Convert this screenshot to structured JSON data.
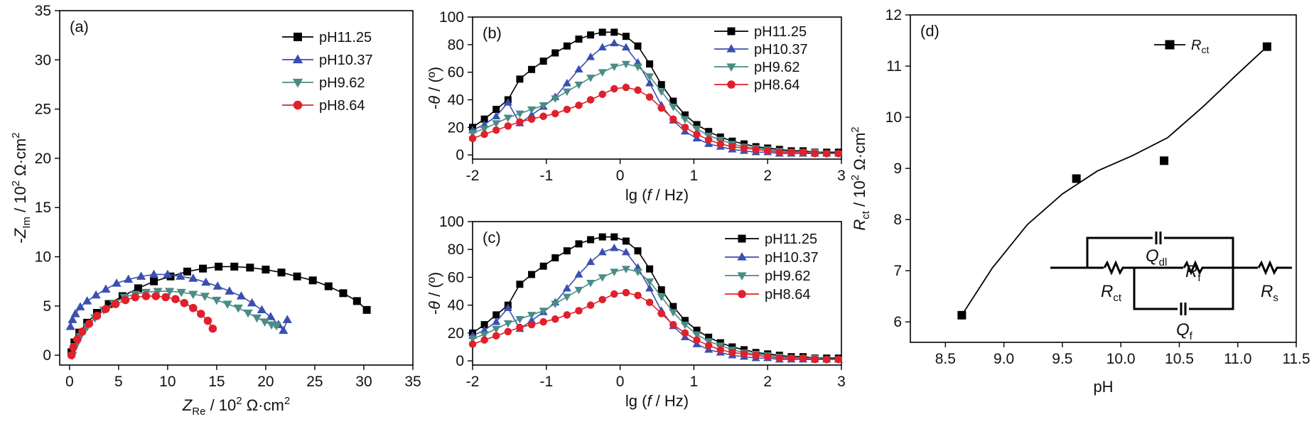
{
  "chart_data": [
    {
      "panel_label": "(a)",
      "type": "scatter",
      "xlim": [
        -1,
        35
      ],
      "ylim": [
        -1,
        35
      ],
      "x_ticks": [
        0,
        5,
        10,
        15,
        20,
        25,
        30,
        35
      ],
      "y_ticks": [
        0,
        5,
        10,
        15,
        20,
        25,
        30,
        35
      ],
      "xlabel": {
        "main": "Z",
        "sub": "Re",
        "rest": " / 10",
        "sup": "2",
        "unit": " Ω·cm",
        "sup2": "2"
      },
      "ylabel": {
        "main": "-Z",
        "sub": "Im",
        "rest": " / 10",
        "sup": "2",
        "unit": " Ω·cm",
        "sup2": "2"
      },
      "legend_position": "top-right",
      "series": [
        {
          "name": "pH11.25",
          "color": "#000000",
          "marker": "square",
          "x": [
            0.2,
            0.5,
            1.0,
            1.8,
            2.8,
            4.0,
            5.4,
            7.0,
            8.6,
            10.3,
            12.0,
            13.6,
            15.2,
            16.8,
            18.4,
            20.0,
            21.6,
            23.2,
            24.8,
            26.4,
            27.9,
            29.3,
            30.3
          ],
          "y": [
            0.3,
            1.3,
            2.3,
            3.3,
            4.3,
            5.2,
            6.0,
            6.8,
            7.5,
            8.0,
            8.5,
            8.8,
            9.0,
            9.0,
            8.9,
            8.7,
            8.4,
            8.0,
            7.6,
            7.0,
            6.3,
            5.5,
            4.6
          ]
        },
        {
          "name": "pH10.37",
          "color": "#3a4fb0",
          "marker": "triangle-up",
          "x": [
            0.1,
            0.3,
            0.6,
            1.1,
            1.8,
            2.7,
            3.7,
            4.8,
            6.0,
            7.3,
            8.6,
            10.0,
            11.3,
            12.6,
            13.9,
            15.1,
            16.3,
            17.5,
            18.6,
            19.6,
            20.5,
            21.3,
            21.8,
            22.2
          ],
          "y": [
            2.9,
            3.6,
            4.2,
            4.9,
            5.5,
            6.1,
            6.7,
            7.3,
            7.7,
            8.0,
            8.2,
            8.2,
            8.0,
            7.8,
            7.4,
            7.0,
            6.5,
            6.0,
            5.3,
            4.6,
            3.9,
            3.1,
            2.5,
            3.6
          ]
        },
        {
          "name": "pH9.62",
          "color": "#4a8c86",
          "marker": "triangle-down",
          "x": [
            0.3,
            0.6,
            1.1,
            1.8,
            2.6,
            3.5,
            4.5,
            5.6,
            6.7,
            7.8,
            9.0,
            10.2,
            11.4,
            12.6,
            13.8,
            15.0,
            16.1,
            17.2,
            18.2,
            19.1,
            19.9,
            20.6,
            21.1
          ],
          "y": [
            0.0,
            0.9,
            1.9,
            2.9,
            3.8,
            4.6,
            5.3,
            5.9,
            6.2,
            6.4,
            6.5,
            6.5,
            6.4,
            6.2,
            6.0,
            5.6,
            5.2,
            4.8,
            4.3,
            3.8,
            3.4,
            3.1,
            3.0
          ]
        },
        {
          "name": "pH8.64",
          "color": "#e0202a",
          "marker": "circle",
          "x": [
            0.2,
            0.4,
            0.8,
            1.3,
            2.0,
            2.8,
            3.7,
            4.7,
            5.7,
            6.7,
            7.8,
            8.8,
            9.8,
            10.8,
            11.7,
            12.6,
            13.4,
            14.1,
            14.6
          ],
          "y": [
            0.0,
            0.8,
            1.6,
            2.4,
            3.2,
            4.0,
            4.7,
            5.2,
            5.6,
            5.9,
            6.0,
            6.0,
            5.9,
            5.7,
            5.3,
            4.8,
            4.2,
            3.5,
            2.7
          ]
        }
      ]
    },
    {
      "panel_label": "(b)",
      "type": "line",
      "xlim": [
        -2,
        3
      ],
      "ylim": [
        -3,
        100
      ],
      "x_ticks": [
        -2,
        -1,
        0,
        1,
        2,
        3
      ],
      "y_ticks": [
        0,
        20,
        40,
        60,
        80,
        100
      ],
      "xlabel": {
        "pre": "lg (",
        "ital": "f",
        "post": " / Hz)"
      },
      "ylabel": {
        "pre": "-",
        "ital": "θ",
        "post": " / (º)"
      },
      "legend_position": "top-right",
      "x": [
        -2.0,
        -1.84,
        -1.68,
        -1.52,
        -1.36,
        -1.2,
        -1.04,
        -0.88,
        -0.72,
        -0.56,
        -0.4,
        -0.24,
        -0.08,
        0.08,
        0.24,
        0.4,
        0.56,
        0.72,
        0.88,
        1.04,
        1.2,
        1.36,
        1.52,
        1.68,
        1.84,
        2.0,
        2.16,
        2.32,
        2.48,
        2.64,
        2.8,
        2.96
      ],
      "series": [
        {
          "name": "pH11.25",
          "color": "#000000",
          "marker": "square",
          "y": [
            20,
            26,
            33,
            40,
            55,
            62,
            68,
            74,
            79,
            84,
            87,
            89,
            89,
            86,
            79,
            66,
            51,
            39,
            29,
            22,
            17,
            13,
            10,
            8,
            6,
            5,
            4,
            3,
            3,
            2,
            2,
            2
          ]
        },
        {
          "name": "pH10.37",
          "color": "#3a4fb0",
          "marker": "triangle-up",
          "y": [
            18,
            22,
            28,
            38,
            23,
            29,
            35,
            42,
            52,
            62,
            71,
            78,
            81,
            78,
            67,
            52,
            36,
            25,
            17,
            12,
            8,
            6,
            4,
            3,
            2,
            2,
            1,
            1,
            1,
            1,
            1,
            1
          ]
        },
        {
          "name": "pH9.62",
          "color": "#4a8c86",
          "marker": "triangle-down",
          "y": [
            16,
            19,
            23,
            27,
            30,
            33,
            36,
            41,
            46,
            51,
            56,
            60,
            64,
            66,
            64,
            57,
            46,
            35,
            26,
            19,
            14,
            11,
            8,
            6,
            5,
            4,
            3,
            2,
            2,
            2,
            1,
            1
          ]
        },
        {
          "name": "pH8.64",
          "color": "#e0202a",
          "marker": "circle",
          "y": [
            12,
            15,
            18,
            21,
            24,
            26,
            28,
            30,
            33,
            36,
            40,
            44,
            48,
            49,
            47,
            42,
            34,
            26,
            20,
            15,
            11,
            8,
            6,
            5,
            4,
            3,
            2,
            2,
            2,
            1,
            1,
            1
          ]
        }
      ]
    },
    {
      "panel_label": "(c)",
      "type": "line",
      "xlim": [
        -2,
        3
      ],
      "ylim": [
        -3,
        100
      ],
      "x_ticks": [
        -2,
        -1,
        0,
        1,
        2,
        3
      ],
      "y_ticks": [
        0,
        20,
        40,
        60,
        80,
        100
      ],
      "xlabel": {
        "pre": "lg (",
        "ital": "f",
        "post": " / Hz)"
      },
      "ylabel": {
        "pre": "-",
        "ital": "θ",
        "post": " / (º)"
      },
      "legend_position": "top-right",
      "x": [
        -2.0,
        -1.84,
        -1.68,
        -1.52,
        -1.36,
        -1.2,
        -1.04,
        -0.88,
        -0.72,
        -0.56,
        -0.4,
        -0.24,
        -0.08,
        0.08,
        0.24,
        0.4,
        0.56,
        0.72,
        0.88,
        1.04,
        1.2,
        1.36,
        1.52,
        1.68,
        1.84,
        2.0,
        2.16,
        2.32,
        2.48,
        2.64,
        2.8,
        2.96
      ],
      "series": [
        {
          "name": "pH11.25",
          "color": "#000000",
          "marker": "square",
          "y": [
            20,
            26,
            33,
            40,
            55,
            62,
            68,
            74,
            79,
            84,
            87,
            89,
            89,
            86,
            79,
            66,
            51,
            39,
            29,
            22,
            17,
            13,
            10,
            8,
            6,
            5,
            4,
            3,
            3,
            2,
            2,
            2
          ]
        },
        {
          "name": "pH10.37",
          "color": "#3a4fb0",
          "marker": "triangle-up",
          "y": [
            18,
            22,
            28,
            38,
            23,
            29,
            35,
            42,
            52,
            62,
            71,
            78,
            81,
            78,
            67,
            52,
            36,
            25,
            17,
            12,
            8,
            6,
            4,
            3,
            2,
            2,
            1,
            1,
            1,
            1,
            1,
            1
          ]
        },
        {
          "name": "pH9.62",
          "color": "#4a8c86",
          "marker": "triangle-down",
          "y": [
            16,
            19,
            23,
            27,
            30,
            33,
            36,
            41,
            46,
            51,
            56,
            60,
            64,
            66,
            64,
            57,
            46,
            35,
            26,
            19,
            14,
            11,
            8,
            6,
            5,
            4,
            3,
            2,
            2,
            2,
            1,
            1
          ]
        },
        {
          "name": "pH8.64",
          "color": "#e0202a",
          "marker": "circle",
          "y": [
            12,
            15,
            18,
            21,
            24,
            26,
            28,
            30,
            33,
            36,
            40,
            44,
            48,
            49,
            47,
            42,
            34,
            26,
            20,
            15,
            11,
            8,
            6,
            5,
            4,
            3,
            2,
            2,
            2,
            1,
            1,
            1
          ]
        }
      ]
    },
    {
      "panel_label": "(d)",
      "type": "scatter",
      "xlim": [
        8.2,
        11.5
      ],
      "ylim": [
        5.6,
        12
      ],
      "x_ticks": [
        8.5,
        9.0,
        9.5,
        10.0,
        10.5,
        11.0,
        11.5
      ],
      "x_tick_labels": [
        "8.5",
        "9.0",
        "9.5",
        "10.0",
        "10.5",
        "11.0",
        "11.5"
      ],
      "y_ticks": [
        6,
        7,
        8,
        9,
        10,
        11,
        12
      ],
      "xlabel": "pH",
      "ylabel": {
        "main": "R",
        "sub": "ct",
        "rest": " / 10",
        "sup": "2",
        "unit": " Ω·cm",
        "sup2": "2"
      },
      "legend_position": "top-right",
      "series": [
        {
          "name": "R",
          "name_sub": "ct",
          "color": "#000000",
          "marker": "square",
          "x": [
            8.64,
            9.62,
            10.37,
            11.25
          ],
          "y": [
            6.13,
            8.8,
            9.15,
            11.38
          ],
          "fit_x": [
            8.64,
            8.9,
            9.2,
            9.5,
            9.8,
            10.1,
            10.4,
            10.7,
            11.0,
            11.25
          ],
          "fit_y": [
            6.13,
            7.05,
            7.9,
            8.5,
            8.95,
            9.25,
            9.6,
            10.2,
            10.85,
            11.38
          ]
        }
      ],
      "circuit": {
        "labels": [
          {
            "main": "Q",
            "sub": "dl"
          },
          {
            "main": "R",
            "sub": "ct"
          },
          {
            "main": "R",
            "sub": "f"
          },
          {
            "main": "R",
            "sub": "s"
          },
          {
            "main": "Q",
            "sub": "f"
          }
        ]
      }
    }
  ]
}
